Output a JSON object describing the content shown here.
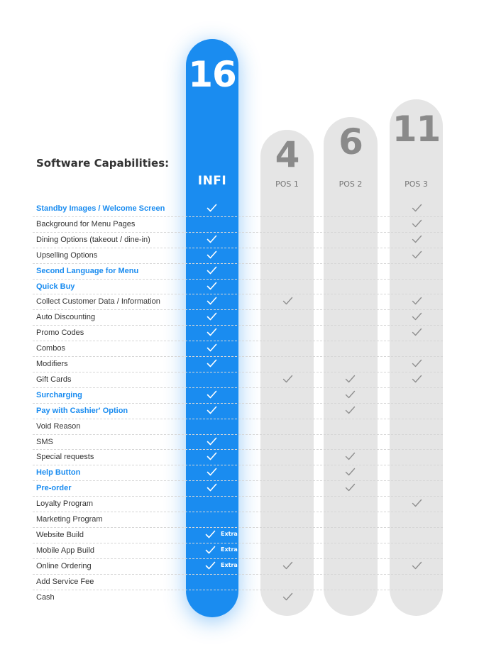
{
  "heading": "Software Capabilities:",
  "chart_data": {
    "type": "table",
    "columns": [
      {
        "name": "INFI",
        "count": "16"
      },
      {
        "name": "POS 1",
        "count": "4"
      },
      {
        "name": "POS 2",
        "count": "6"
      },
      {
        "name": "POS 3",
        "count": "11"
      }
    ],
    "rows": [
      {
        "label": "Standby Images / Welcome Screen",
        "highlight": true,
        "checks": [
          1,
          0,
          0,
          1
        ]
      },
      {
        "label": "Background for Menu Pages",
        "highlight": false,
        "checks": [
          0,
          0,
          0,
          1
        ]
      },
      {
        "label": "Dining Options (takeout / dine-in)",
        "highlight": false,
        "checks": [
          1,
          0,
          0,
          1
        ]
      },
      {
        "label": "Upselling Options",
        "highlight": false,
        "checks": [
          1,
          0,
          0,
          1
        ]
      },
      {
        "label": "Second Language for Menu",
        "highlight": true,
        "checks": [
          1,
          0,
          0,
          0
        ]
      },
      {
        "label": "Quick Buy",
        "highlight": true,
        "checks": [
          1,
          0,
          0,
          0
        ]
      },
      {
        "label": "Collect Customer Data / Information",
        "highlight": false,
        "checks": [
          1,
          1,
          0,
          1
        ]
      },
      {
        "label": "Auto Discounting",
        "highlight": false,
        "checks": [
          1,
          0,
          0,
          1
        ]
      },
      {
        "label": "Promo Codes",
        "highlight": false,
        "checks": [
          1,
          0,
          0,
          1
        ]
      },
      {
        "label": "Combos",
        "highlight": false,
        "checks": [
          1,
          0,
          0,
          0
        ]
      },
      {
        "label": "Modifiers",
        "highlight": false,
        "checks": [
          1,
          0,
          0,
          1
        ]
      },
      {
        "label": "Gift Cards",
        "highlight": false,
        "checks": [
          0,
          1,
          1,
          1
        ]
      },
      {
        "label": "Surcharging",
        "highlight": true,
        "checks": [
          1,
          0,
          1,
          0
        ]
      },
      {
        "label": "Pay with Cashier' Option",
        "highlight": true,
        "checks": [
          1,
          0,
          1,
          0
        ]
      },
      {
        "label": "Void Reason",
        "highlight": false,
        "checks": [
          0,
          0,
          0,
          0
        ]
      },
      {
        "label": "SMS",
        "highlight": false,
        "checks": [
          1,
          0,
          0,
          0
        ]
      },
      {
        "label": "Special requests",
        "highlight": false,
        "checks": [
          1,
          0,
          1,
          0
        ]
      },
      {
        "label": "Help Button",
        "highlight": true,
        "checks": [
          1,
          0,
          1,
          0
        ]
      },
      {
        "label": "Pre-order",
        "highlight": true,
        "checks": [
          1,
          0,
          1,
          0
        ]
      },
      {
        "label": "Loyalty Program",
        "highlight": false,
        "checks": [
          0,
          0,
          0,
          1
        ]
      },
      {
        "label": "Marketing Program",
        "highlight": false,
        "checks": [
          0,
          0,
          0,
          0
        ]
      },
      {
        "label": "Website Build",
        "highlight": false,
        "checks": [
          1,
          0,
          0,
          0
        ],
        "extra": "Extra"
      },
      {
        "label": "Mobile App Build",
        "highlight": false,
        "checks": [
          1,
          0,
          0,
          0
        ],
        "extra": "Extra"
      },
      {
        "label": "Online Ordering",
        "highlight": false,
        "checks": [
          1,
          1,
          0,
          1
        ],
        "extra": "Extra"
      },
      {
        "label": "Add Service Fee",
        "highlight": false,
        "checks": [
          0,
          0,
          0,
          0
        ]
      },
      {
        "label": "Cash",
        "highlight": false,
        "checks": [
          0,
          1,
          0,
          0
        ]
      }
    ]
  },
  "colors": {
    "accent": "#1a8cf0",
    "column_gray": "#e5e5e5",
    "check_on_accent": "#ffffff",
    "check_on_gray": "#8f8f8f",
    "label_text": "#333333"
  },
  "icons": {
    "check": "checkmark-icon"
  }
}
